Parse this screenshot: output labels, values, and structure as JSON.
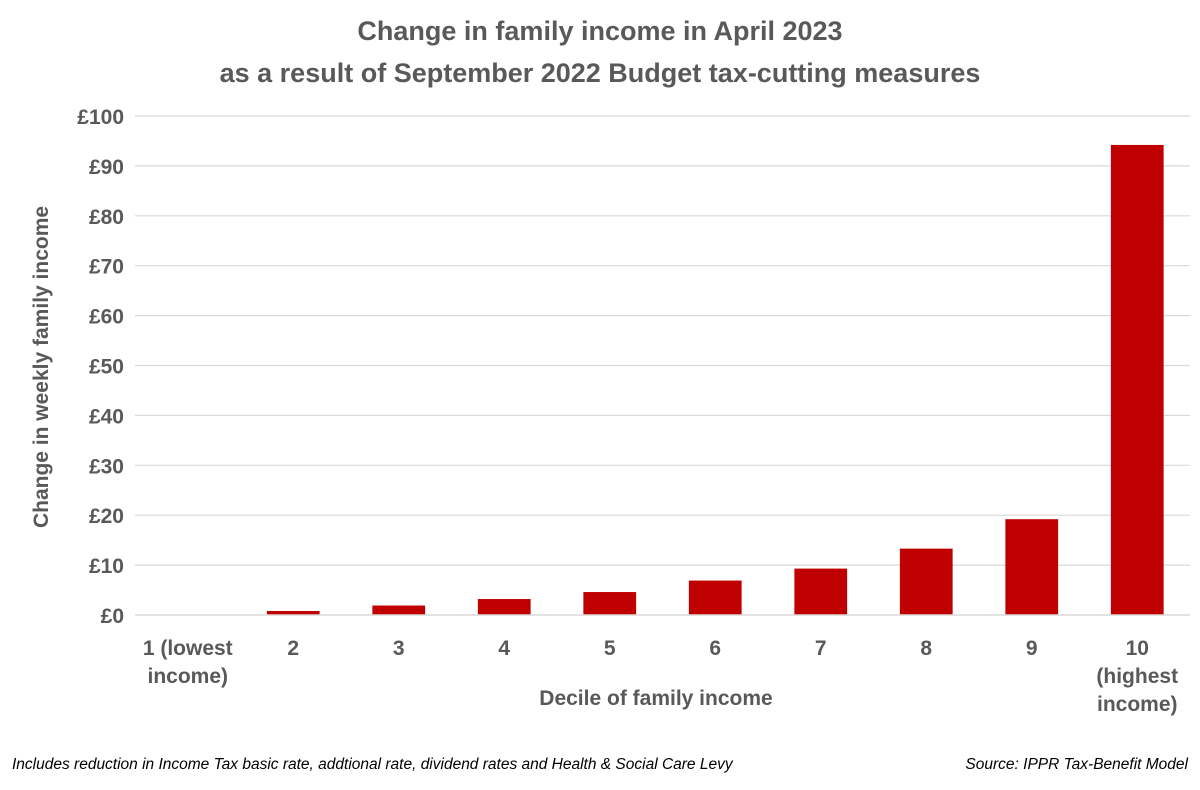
{
  "chart_data": {
    "type": "bar",
    "title": [
      "Change in family income in April 2023",
      "as a result of September 2022 Budget tax-cutting measures"
    ],
    "xlabel": "Decile of family income",
    "ylabel": "Change in weekly family income",
    "categories": [
      [
        "1 (lowest",
        "income)"
      ],
      [
        "2"
      ],
      [
        "3"
      ],
      [
        "4"
      ],
      [
        "5"
      ],
      [
        "6"
      ],
      [
        "7"
      ],
      [
        "8"
      ],
      [
        "9"
      ],
      [
        "10",
        "(highest",
        "income)"
      ]
    ],
    "values": [
      0,
      0.8,
      1.9,
      3.2,
      4.6,
      6.9,
      9.3,
      13.3,
      19.2,
      94.2
    ],
    "ylim": [
      0,
      100
    ],
    "y_ticks": [
      0,
      10,
      20,
      30,
      40,
      50,
      60,
      70,
      80,
      90,
      100
    ],
    "y_tick_labels": [
      "£0",
      "£10",
      "£20",
      "£30",
      "£40",
      "£50",
      "£60",
      "£70",
      "£80",
      "£90",
      "£100"
    ],
    "grid": true,
    "bar_color": "#C00000",
    "gridline_color": "#D9D9D9",
    "text_color": "#595959"
  },
  "footnote_left": "Includes reduction in Income Tax basic rate, addtional rate, dividend rates and Health & Social Care Levy",
  "footnote_right": "Source: IPPR Tax-Benefit Model"
}
